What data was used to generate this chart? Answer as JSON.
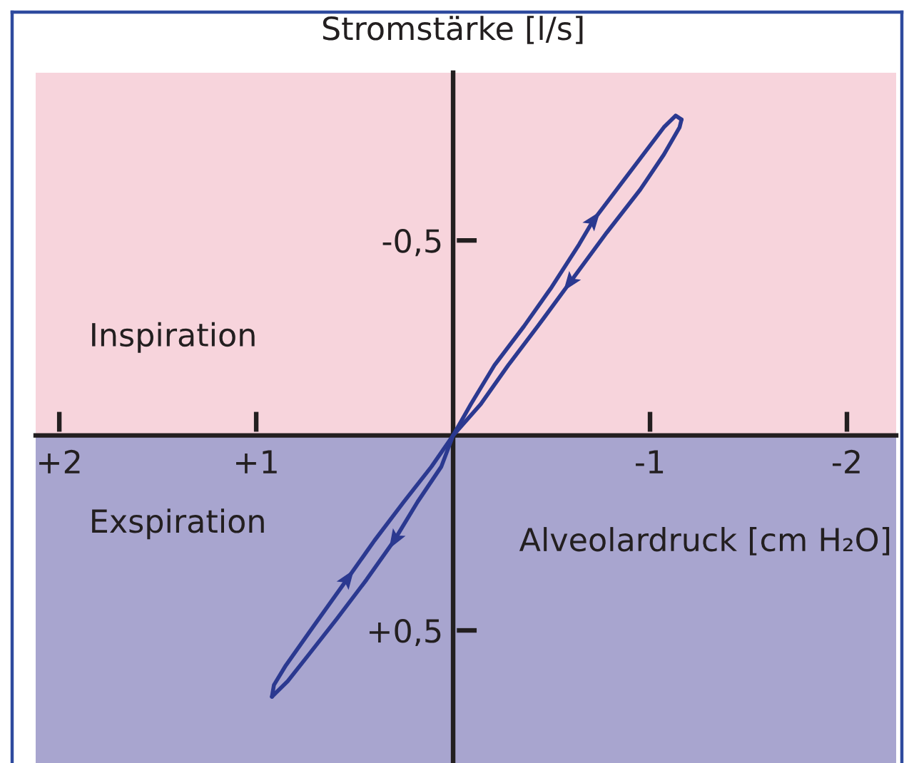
{
  "chart_data": {
    "type": "line",
    "xlabel": "Alveolardruck [cm H₂O]",
    "ylabel": "Stromstärke [l/s]",
    "xlim": [
      2.12,
      -2.25
    ],
    "ylim": [
      0.84,
      -0.93
    ],
    "xticks": [
      {
        "value": 2,
        "label": "+2"
      },
      {
        "value": 1,
        "label": "+1"
      },
      {
        "value": -1,
        "label": "-1"
      },
      {
        "value": -2,
        "label": "-2"
      }
    ],
    "yticks": [
      {
        "value": -0.5,
        "label": "-0,5"
      },
      {
        "value": 0.5,
        "label": "+0,5"
      }
    ],
    "line_style": "solid",
    "bands": [
      {
        "axis": "y",
        "from": 0,
        "to": -0.93,
        "label": "Inspiration",
        "color": "#f7d4dc"
      },
      {
        "axis": "y",
        "from": 0,
        "to": 0.84,
        "label": "Exspiration",
        "color": "#a8a5cf"
      }
    ],
    "series": [
      {
        "color": "#2b3990",
        "x": [
          0,
          -0.09,
          -0.21,
          -0.36,
          -0.5,
          -0.64,
          -0.71,
          -0.83,
          -0.95,
          -1.07,
          -1.13,
          -1.16
        ],
        "values": [
          0,
          -0.08,
          -0.18,
          -0.28,
          -0.38,
          -0.49,
          -0.55,
          -0.63,
          -0.71,
          -0.79,
          -0.82,
          -0.81
        ]
      },
      {
        "color": "#2b3990",
        "x": [
          -1.16,
          -1.15,
          -1.07,
          -0.95,
          -0.78,
          -0.59,
          -0.43,
          -0.28,
          -0.14,
          0,
          0.06,
          0.18,
          0.3,
          0.44,
          0.59,
          0.73,
          0.84,
          0.9,
          0.92
        ],
        "values": [
          -0.81,
          -0.79,
          -0.72,
          -0.63,
          -0.52,
          -0.39,
          -0.28,
          -0.18,
          -0.08,
          0,
          0.08,
          0.17,
          0.27,
          0.37,
          0.47,
          0.56,
          0.63,
          0.66,
          0.67
        ]
      },
      {
        "color": "#2b3990",
        "x": [
          0.92,
          0.91,
          0.85,
          0.71,
          0.54,
          0.4,
          0.25,
          0.11,
          0
        ],
        "values": [
          0.67,
          0.64,
          0.59,
          0.49,
          0.37,
          0.27,
          0.17,
          0.08,
          0
        ]
      }
    ]
  }
}
